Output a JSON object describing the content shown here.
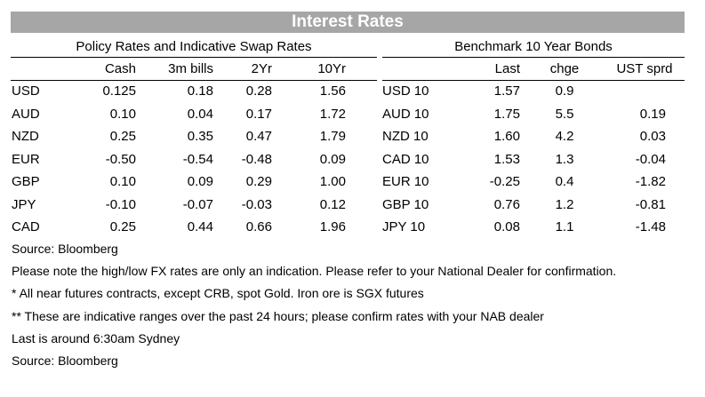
{
  "title": "Interest Rates",
  "policy": {
    "heading": "Policy Rates and Indicative Swap Rates",
    "columns": [
      "Cash",
      "3m bills",
      "2Yr",
      "10Yr"
    ],
    "rows": [
      {
        "label": "USD",
        "values": [
          "0.125",
          "0.18",
          "0.28",
          "1.56"
        ]
      },
      {
        "label": "AUD",
        "values": [
          "0.10",
          "0.04",
          "0.17",
          "1.72"
        ]
      },
      {
        "label": "NZD",
        "values": [
          "0.25",
          "0.35",
          "0.47",
          "1.79"
        ]
      },
      {
        "label": "EUR",
        "values": [
          "-0.50",
          "-0.54",
          "-0.48",
          "0.09"
        ]
      },
      {
        "label": "GBP",
        "values": [
          "0.10",
          "0.09",
          "0.29",
          "1.00"
        ]
      },
      {
        "label": "JPY",
        "values": [
          "-0.10",
          "-0.07",
          "-0.03",
          "0.12"
        ]
      },
      {
        "label": "CAD",
        "values": [
          "0.25",
          "0.44",
          "0.66",
          "1.96"
        ]
      }
    ]
  },
  "bonds": {
    "heading": "Benchmark 10 Year Bonds",
    "columns": [
      "Last",
      "chge",
      "UST sprd"
    ],
    "rows": [
      {
        "label": "USD 10",
        "values": [
          "1.57",
          "0.9",
          ""
        ]
      },
      {
        "label": "AUD 10",
        "values": [
          "1.75",
          "5.5",
          "0.19"
        ]
      },
      {
        "label": "NZD 10",
        "values": [
          "1.60",
          "4.2",
          "0.03"
        ]
      },
      {
        "label": "CAD 10",
        "values": [
          "1.53",
          "1.3",
          "-0.04"
        ]
      },
      {
        "label": "EUR 10",
        "values": [
          "-0.25",
          "0.4",
          "-1.82"
        ]
      },
      {
        "label": "GBP 10",
        "values": [
          "0.76",
          "1.2",
          "-0.81"
        ]
      },
      {
        "label": "JPY 10",
        "values": [
          "0.08",
          "1.1",
          "-1.48"
        ]
      }
    ]
  },
  "notes": [
    "Source: Bloomberg",
    "Please note the high/low FX rates are only an indication. Please refer to your National Dealer for confirmation.",
    "* All near futures contracts, except CRB, spot Gold.  Iron ore is SGX futures",
    "** These are indicative ranges over the past 24 hours; please confirm rates with your NAB dealer",
    "Last is around 6:30am Sydney",
    "Source: Bloomberg"
  ]
}
